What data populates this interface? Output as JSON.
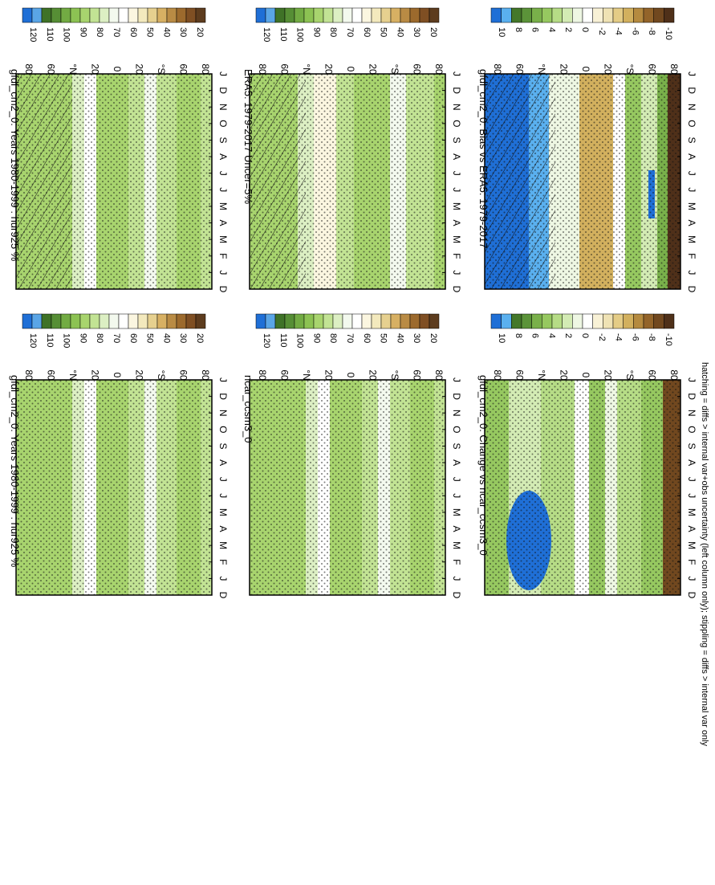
{
  "footnote": "hatching = diffs > internal var+obs uncertainty (left column only); stippling = diffs > internal var only",
  "colors": {
    "abs_scale": [
      "#5d3c1e",
      "#7f4f23",
      "#9c6a2d",
      "#b98b44",
      "#d7b063",
      "#e6d08f",
      "#f3e9bd",
      "#fbf6e0",
      "#ffffff",
      "#f3f9ee",
      "#dcefc3",
      "#c2e394",
      "#a8d46e",
      "#8cc253",
      "#72ab43",
      "#568e35",
      "#3f7227",
      "#5aa5e6",
      "#1f6fd6"
    ],
    "diff_scale": [
      "#4f3019",
      "#71481f",
      "#93642a",
      "#b58a3f",
      "#d2b05e",
      "#e4cc86",
      "#efe2b4",
      "#f8f1d6",
      "#ffffff",
      "#eef7e3",
      "#d3ebb4",
      "#b6dc86",
      "#96c860",
      "#79b04a",
      "#5b9339",
      "#44782a",
      "#5ab0ef",
      "#1f6fd6"
    ]
  },
  "chart_data": [
    {
      "type": "heatmap",
      "title": "gfdl_cm2_0: Years 1980-1999 : hur925 %",
      "x_ticks": [
        "D",
        "J",
        "F",
        "M",
        "A",
        "M",
        "J",
        "J",
        "A",
        "S",
        "O",
        "N",
        "D",
        "J"
      ],
      "y_ticks": [
        "80",
        "60",
        "°N",
        "20",
        "0",
        "20",
        "°S",
        "60",
        "80"
      ],
      "colorbar_ticks": [
        "120",
        "110",
        "100",
        "90",
        "80",
        "70",
        "60",
        "50",
        "40",
        "30",
        "20"
      ],
      "hatching": true,
      "stippling": true
    },
    {
      "type": "heatmap",
      "title": "gfdl_cm2_0: Years 1980-1999 : hur925 %",
      "x_ticks": [
        "D",
        "J",
        "F",
        "M",
        "A",
        "M",
        "J",
        "J",
        "A",
        "S",
        "O",
        "N",
        "D",
        "J"
      ],
      "y_ticks": [
        "80",
        "60",
        "°N",
        "20",
        "0",
        "20",
        "°S",
        "60",
        "80"
      ],
      "colorbar_ticks": [
        "120",
        "110",
        "100",
        "90",
        "80",
        "70",
        "60",
        "50",
        "40",
        "30",
        "20"
      ],
      "hatching": false,
      "stippling": true
    },
    {
      "type": "heatmap",
      "title": "ERA5: 1979-2017 Uncer=5%",
      "x_ticks": [
        "D",
        "J",
        "F",
        "M",
        "A",
        "M",
        "J",
        "J",
        "A",
        "S",
        "O",
        "N",
        "D",
        "J"
      ],
      "y_ticks": [
        "80",
        "60",
        "°N",
        "20",
        "0",
        "20",
        "°S",
        "60",
        "80"
      ],
      "colorbar_ticks": [
        "120",
        "110",
        "100",
        "90",
        "80",
        "70",
        "60",
        "50",
        "40",
        "30",
        "20"
      ],
      "hatching": true,
      "stippling": true
    },
    {
      "type": "heatmap",
      "title": "ncar_ccsm3_0",
      "x_ticks": [
        "D",
        "J",
        "F",
        "M",
        "A",
        "M",
        "J",
        "J",
        "A",
        "S",
        "O",
        "N",
        "D",
        "J"
      ],
      "y_ticks": [
        "80",
        "60",
        "°N",
        "20",
        "0",
        "20",
        "°S",
        "60",
        "80"
      ],
      "colorbar_ticks": [
        "120",
        "110",
        "100",
        "90",
        "80",
        "70",
        "60",
        "50",
        "40",
        "30",
        "20"
      ],
      "hatching": false,
      "stippling": true
    },
    {
      "type": "heatmap",
      "title": "gfdl_cm2_0: Bias vs ERA5: 1979-2017",
      "x_ticks": [
        "D",
        "J",
        "F",
        "M",
        "A",
        "M",
        "J",
        "J",
        "A",
        "S",
        "O",
        "N",
        "D",
        "J"
      ],
      "y_ticks": [
        "80",
        "60",
        "°N",
        "20",
        "0",
        "20",
        "°S",
        "60",
        "80"
      ],
      "colorbar_ticks": [
        "10",
        "8",
        "6",
        "4",
        "2",
        "0",
        "-2",
        "-4",
        "-6",
        "-8",
        "-10"
      ],
      "hatching": true,
      "stippling": true
    },
    {
      "type": "heatmap",
      "title": "gfdl_cm2_0: Change vs ncar_ccsm3_0",
      "x_ticks": [
        "D",
        "J",
        "F",
        "M",
        "A",
        "M",
        "J",
        "J",
        "A",
        "S",
        "O",
        "N",
        "D",
        "J"
      ],
      "y_ticks": [
        "80",
        "60",
        "°N",
        "20",
        "0",
        "20",
        "°S",
        "60",
        "80"
      ],
      "colorbar_ticks": [
        "10",
        "8",
        "6",
        "4",
        "2",
        "0",
        "-2",
        "-4",
        "-6",
        "-8",
        "-10"
      ],
      "hatching": false,
      "stippling": true
    }
  ]
}
